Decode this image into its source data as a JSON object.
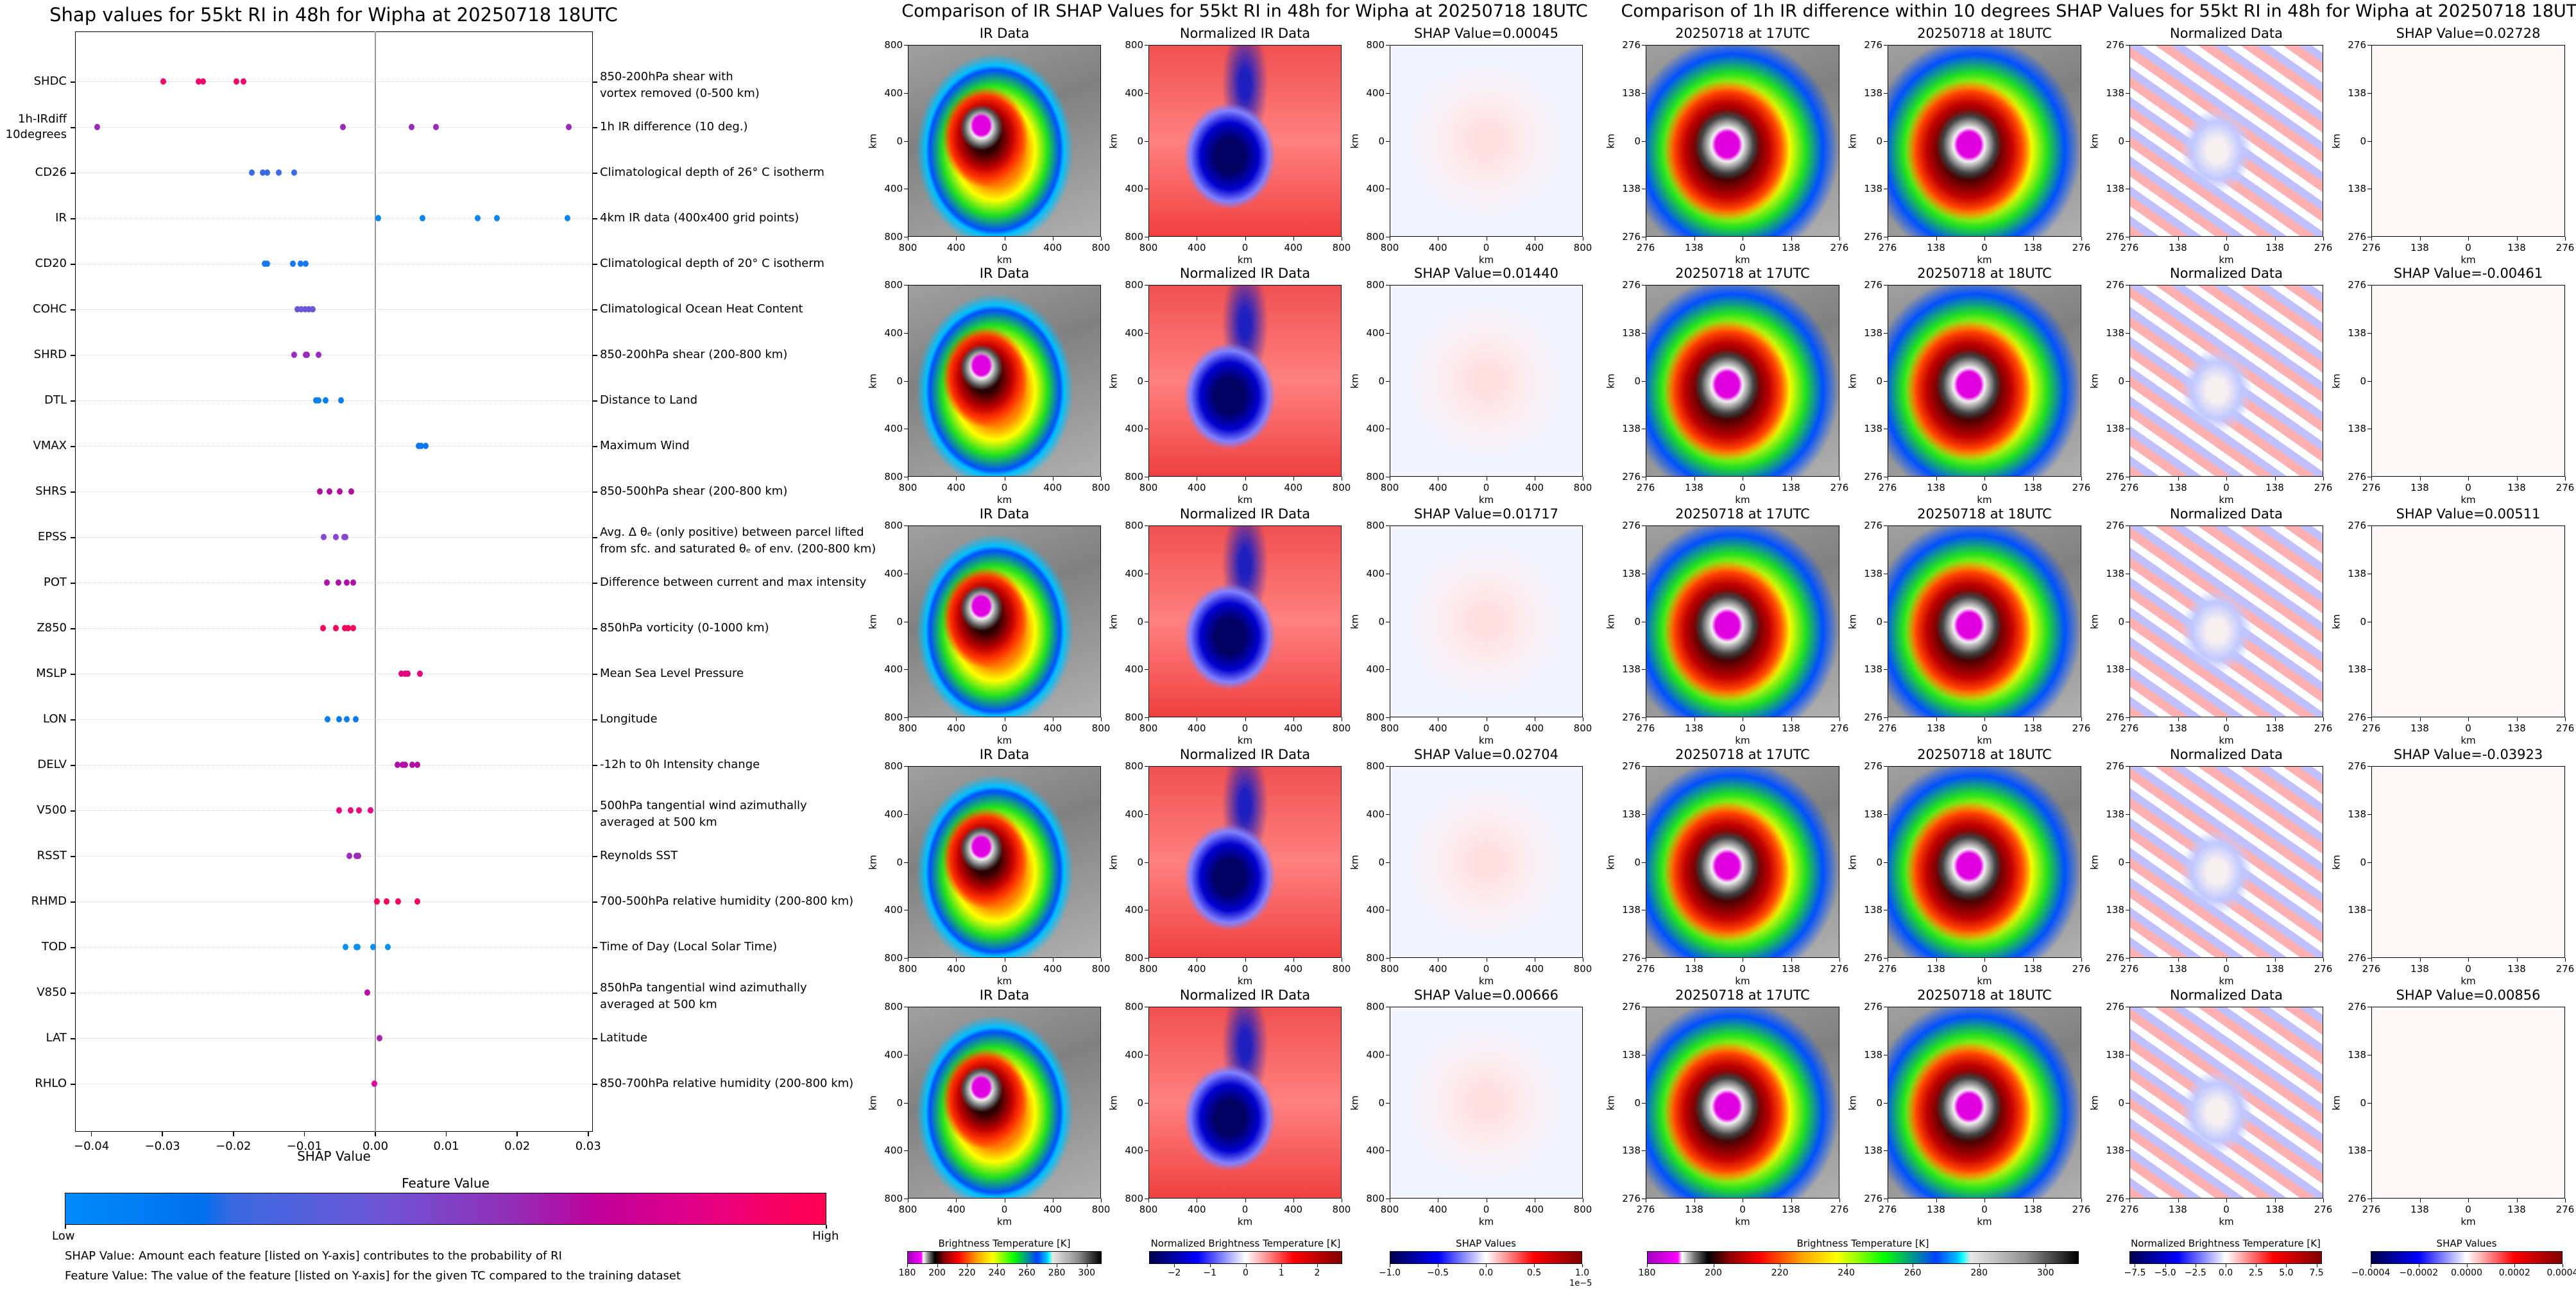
{
  "chart_data": [
    {
      "type": "scatter",
      "title": "Shap values for 55kt RI in 48h for Wipha at 20250718 18UTC",
      "xlabel": "SHAP Value",
      "xlim": [
        -0.0423,
        0.0307
      ],
      "grid": true,
      "xticks": [
        {
          "value": -0.04,
          "label": "−0.04"
        },
        {
          "value": -0.03,
          "label": "−0.03"
        },
        {
          "value": -0.02,
          "label": "−0.02"
        },
        {
          "value": -0.01,
          "label": "−0.01"
        },
        {
          "value": 0.0,
          "label": "0.00"
        },
        {
          "value": 0.01,
          "label": "0.01"
        },
        {
          "value": 0.02,
          "label": "0.02"
        },
        {
          "value": 0.03,
          "label": "0.03"
        }
      ],
      "features": [
        {
          "name": "SHDC",
          "description": "850-200hPa shear with\nvortex removed (0-500 km)",
          "color": "#f5066a",
          "values": [
            -0.0299,
            -0.0249,
            -0.0243,
            -0.0196,
            -0.0186
          ]
        },
        {
          "name": "1h-IRdiff\n10degrees",
          "description": "1h IR difference (10 deg.)",
          "color": "#9a2ab8",
          "values": [
            -0.03923,
            -0.00461,
            0.00511,
            0.00856,
            0.02728
          ]
        },
        {
          "name": "CD26",
          "description": "Climatological depth of 26° C isotherm",
          "color": "#3a6ae8",
          "values": [
            -0.0174,
            -0.0159,
            -0.0152,
            -0.0136,
            -0.0114
          ]
        },
        {
          "name": "IR",
          "description": "4km IR data (400x400 grid points)",
          "color": "#0a86f2",
          "values": [
            0.00045,
            0.00666,
            0.0144,
            0.01717,
            0.02704
          ]
        },
        {
          "name": "CD20",
          "description": "Climatological depth of 20° C isotherm",
          "color": "#1a78ee",
          "values": [
            -0.0156,
            -0.0152,
            -0.0116,
            -0.0105,
            -0.0098
          ]
        },
        {
          "name": "COHC",
          "description": "Climatological Ocean Heat Content",
          "color": "#6a58d8",
          "values": [
            -0.011,
            -0.0104,
            -0.0099,
            -0.0094,
            -0.0088
          ]
        },
        {
          "name": "SHRD",
          "description": "850-200hPa shear (200-800 km)",
          "color": "#9b2cc0",
          "values": [
            -0.0114,
            -0.0098,
            -0.0096,
            -0.008
          ]
        },
        {
          "name": "DTL",
          "description": "Distance to Land",
          "color": "#0a80f0",
          "values": [
            -0.0084,
            -0.008,
            -0.007,
            -0.0048
          ]
        },
        {
          "name": "VMAX",
          "description": "Maximum Wind",
          "color": "#0a78f0",
          "values": [
            0.0061,
            0.0065,
            0.0071
          ]
        },
        {
          "name": "SHRS",
          "description": "850-500hPa shear (200-800 km)",
          "color": "#b0109c",
          "values": [
            -0.0078,
            -0.0065,
            -0.005,
            -0.0034
          ]
        },
        {
          "name": "EPSS",
          "description": "Avg. Δ θₑ (only positive) between parcel lifted\nfrom sfc. and saturated θₑ of env. (200-800 km)",
          "color": "#8a48d0",
          "values": [
            -0.0073,
            -0.0056,
            -0.0044,
            -0.0042
          ]
        },
        {
          "name": "POT",
          "description": "Difference between current and max intensity",
          "color": "#b010a8",
          "values": [
            -0.0068,
            -0.0052,
            -0.004,
            -0.0031
          ]
        },
        {
          "name": "Z850",
          "description": "850hPa vorticity (0-1000 km)",
          "color": "#f8045e",
          "values": [
            -0.0074,
            -0.0056,
            -0.0043,
            -0.0038,
            -0.0031
          ]
        },
        {
          "name": "MSLP",
          "description": "Mean Sea Level Pressure",
          "color": "#e4047e",
          "values": [
            0.0037,
            0.0042,
            0.0046,
            0.0063
          ]
        },
        {
          "name": "LON",
          "description": "Longitude",
          "color": "#0a7cf0",
          "values": [
            -0.0067,
            -0.0051,
            -0.004,
            -0.0028
          ]
        },
        {
          "name": "DELV",
          "description": "-12h to 0h Intensity change",
          "color": "#b40ca6",
          "values": [
            0.0031,
            0.0038,
            0.0042,
            0.0052,
            0.0059
          ]
        },
        {
          "name": "V500",
          "description": "500hPa tangential wind azimuthally\naveraged at 500 km",
          "color": "#e8087e",
          "values": [
            -0.0051,
            -0.0035,
            -0.0023,
            -0.0007
          ]
        },
        {
          "name": "RSST",
          "description": "Reynolds SST",
          "color": "#9c2cb8",
          "values": [
            -0.0037,
            -0.0027,
            -0.0024
          ]
        },
        {
          "name": "RHMD",
          "description": "700-500hPa relative humidity (200-800 km)",
          "color": "#fc0260",
          "values": [
            0.0002,
            0.0016,
            0.0032,
            0.0059
          ]
        },
        {
          "name": "TOD",
          "description": "Time of Day (Local Solar Time)",
          "color": "#0a90f4",
          "values": [
            -0.0042,
            -0.0027,
            -0.0025,
            -0.0003,
            0.0018
          ]
        },
        {
          "name": "V850",
          "description": "850hPa tangential wind azimuthally\naveraged at 500 km",
          "color": "#c00aa4",
          "values": [
            -0.0011
          ]
        },
        {
          "name": "LAT",
          "description": "Latitude",
          "color": "#b020b0",
          "values": [
            0.0006
          ]
        },
        {
          "name": "RHLO",
          "description": "850-700hPa relative humidity (200-800 km)",
          "color": "#e0049a",
          "values": [
            -0.0001
          ]
        }
      ],
      "colorbar": {
        "title": "Feature Value",
        "low": "Low",
        "high": "High"
      }
    }
  ],
  "notes": {
    "shap_value": "SHAP Value: Amount each feature [listed on Y-axis] contributes to the probability of RI",
    "feature_value": "Feature Value: The value of the feature [listed on Y-axis] for the given TC compared to the training dataset"
  },
  "ir_comparison": {
    "title": "Comparison of IR SHAP Values for 55kt RI in 48h for Wipha at 20250718 18UTC",
    "columns": [
      "IR Data",
      "Normalized IR Data"
    ],
    "shap_titles": [
      "SHAP Value=0.00045",
      "SHAP Value=0.01440",
      "SHAP Value=0.01717",
      "SHAP Value=0.02704",
      "SHAP Value=0.00666"
    ],
    "ticks": [
      "800",
      "400",
      "0",
      "400",
      "800"
    ],
    "axis_label": "km"
  },
  "irdiff_comparison": {
    "title": "Comparison of 1h IR difference within 10 degrees SHAP Values for 55kt RI in 48h for Wipha at 20250718 18UTC",
    "columns": [
      "20250718 at 17UTC",
      "20250718 at 18UTC",
      "Normalized Data"
    ],
    "shap_titles": [
      "SHAP Value=0.02728",
      "SHAP Value=-0.00461",
      "SHAP Value=0.00511",
      "SHAP Value=-0.03923",
      "SHAP Value=0.00856"
    ],
    "ticks": [
      "276",
      "138",
      "0",
      "138",
      "276"
    ],
    "axis_label": "km"
  },
  "colorbars": [
    {
      "label": "Brightness Temperature [K]",
      "min": 180,
      "max": 310,
      "cmap": "bt",
      "ticks": [
        "180",
        "200",
        "220",
        "240",
        "260",
        "280",
        "300"
      ],
      "tick_values": [
        180,
        200,
        220,
        240,
        260,
        280,
        300
      ]
    },
    {
      "label": "Normalized Brightness Temperature [K]",
      "min": -2.7,
      "max": 2.7,
      "cmap": "seismic",
      "ticks": [
        "−2",
        "−1",
        "0",
        "1",
        "2"
      ],
      "tick_values": [
        -2,
        -1,
        0,
        1,
        2
      ]
    },
    {
      "label": "SHAP Values",
      "min": -1.0,
      "max": 1.0,
      "cmap": "seismic",
      "ticks": [
        "−1.0",
        "−0.5",
        "0.0",
        "0.5",
        "1.0"
      ],
      "tick_values": [
        -1,
        -0.5,
        0,
        0.5,
        1
      ],
      "offset": "1e−5"
    },
    {
      "label": "Brightness Temperature [K]",
      "min": 180,
      "max": 310,
      "cmap": "bt",
      "ticks": [
        "180",
        "200",
        "220",
        "240",
        "260",
        "280",
        "300"
      ],
      "tick_values": [
        180,
        200,
        220,
        240,
        260,
        280,
        300
      ]
    },
    {
      "label": "Normalized Brightness Temperature [K]",
      "min": -7.95,
      "max": 7.95,
      "cmap": "seismic",
      "ticks": [
        "−7.5",
        "−5.0",
        "−2.5",
        "0.0",
        "2.5",
        "5.0",
        "7.5"
      ],
      "tick_values": [
        -7.5,
        -5,
        -2.5,
        0,
        2.5,
        5,
        7.5
      ]
    },
    {
      "label": "SHAP Values",
      "min": -0.0004,
      "max": 0.0004,
      "cmap": "seismic",
      "ticks": [
        "−0.0004",
        "−0.0002",
        "0.0000",
        "0.0002",
        "0.0004"
      ],
      "tick_values": [
        -0.0004,
        -0.0002,
        0,
        0.0002,
        0.0004
      ]
    }
  ],
  "colors": {
    "feature_low": "#008bfb",
    "feature_high": "#ff0052",
    "zero_line": "#999999"
  }
}
